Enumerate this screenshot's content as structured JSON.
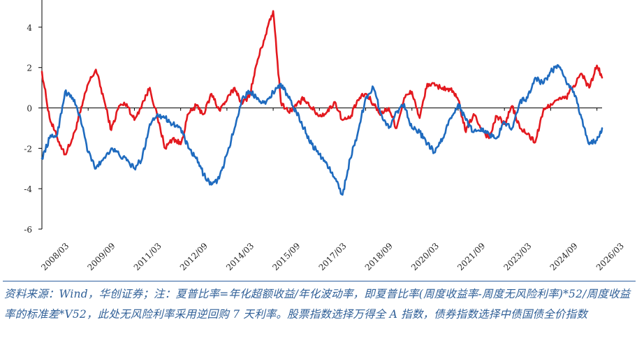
{
  "chart_data": {
    "type": "line",
    "title": "",
    "xlabel": "",
    "ylabel": "",
    "ylim": [
      -6,
      5
    ],
    "yticks": [
      4,
      2,
      0,
      -2,
      -4,
      -6
    ],
    "xticks": [
      "2008/03",
      "2009/09",
      "2011/03",
      "2012/09",
      "2014/03",
      "2015/09",
      "2017/03",
      "2018/09",
      "2020/03",
      "2021/09",
      "2023/03",
      "2024/09",
      "2026/03"
    ],
    "grid": false,
    "legend": "none",
    "series": [
      {
        "color": "#e3191f",
        "x": [
          "2008/03",
          "2008/06",
          "2008/09",
          "2008/12",
          "2009/03",
          "2009/06",
          "2009/09",
          "2009/12",
          "2010/03",
          "2010/06",
          "2010/09",
          "2010/12",
          "2011/03",
          "2011/06",
          "2011/09",
          "2011/12",
          "2012/03",
          "2012/06",
          "2012/09",
          "2012/12",
          "2013/03",
          "2013/06",
          "2013/09",
          "2013/12",
          "2014/03",
          "2014/06",
          "2014/09",
          "2014/12",
          "2015/03",
          "2015/06",
          "2015/09",
          "2015/12",
          "2016/03",
          "2016/06",
          "2016/09",
          "2016/12",
          "2017/03",
          "2017/06",
          "2017/09",
          "2017/12",
          "2018/03",
          "2018/06",
          "2018/09",
          "2018/12",
          "2019/03",
          "2019/06",
          "2019/09",
          "2019/12",
          "2020/03",
          "2020/06",
          "2020/09",
          "2020/12",
          "2021/03",
          "2021/06",
          "2021/09",
          "2021/12",
          "2022/03",
          "2022/06",
          "2022/09",
          "2022/12",
          "2023/03",
          "2023/06",
          "2023/09",
          "2023/12",
          "2024/03",
          "2024/06",
          "2024/09",
          "2024/12",
          "2025/03",
          "2025/06",
          "2025/09",
          "2025/12",
          "2026/03",
          "2026/05"
        ],
        "y": [
          1.8,
          -0.5,
          -1.5,
          -2.3,
          -1.5,
          -0.2,
          1.2,
          1.9,
          0.5,
          -1.1,
          0.1,
          0.2,
          -0.6,
          0.2,
          1.0,
          -0.5,
          -2.0,
          -1.5,
          -1.8,
          -0.3,
          0.1,
          -0.3,
          0.7,
          -0.1,
          0.4,
          1.0,
          0.2,
          0.7,
          2.4,
          3.6,
          4.8,
          0.3,
          -0.2,
          0.1,
          0.5,
          0.0,
          -0.4,
          -0.2,
          0.3,
          -0.6,
          -0.5,
          0.4,
          0.7,
          0.2,
          -0.3,
          0.0,
          -1.0,
          0.5,
          0.8,
          -0.5,
          1.2,
          1.1,
          1.0,
          0.9,
          0.4,
          -1.2,
          -0.3,
          -1.0,
          -1.5,
          -0.4,
          -0.8,
          0.1,
          -1.0,
          -1.3,
          -1.7,
          -0.2,
          0.2,
          0.4,
          0.5,
          1.1,
          1.7,
          1.0,
          2.1,
          1.5
        ]
      },
      {
        "color": "#1f6bbf",
        "x": [
          "2008/03",
          "2008/06",
          "2008/09",
          "2008/12",
          "2009/03",
          "2009/06",
          "2009/09",
          "2009/12",
          "2010/03",
          "2010/06",
          "2010/09",
          "2010/12",
          "2011/03",
          "2011/06",
          "2011/09",
          "2011/12",
          "2012/03",
          "2012/06",
          "2012/09",
          "2012/12",
          "2013/03",
          "2013/06",
          "2013/09",
          "2013/12",
          "2014/03",
          "2014/06",
          "2014/09",
          "2014/12",
          "2015/03",
          "2015/06",
          "2015/09",
          "2015/12",
          "2016/03",
          "2016/06",
          "2016/09",
          "2016/12",
          "2017/03",
          "2017/06",
          "2017/09",
          "2017/12",
          "2018/03",
          "2018/06",
          "2018/09",
          "2018/12",
          "2019/03",
          "2019/06",
          "2019/09",
          "2019/12",
          "2020/03",
          "2020/06",
          "2020/09",
          "2020/12",
          "2021/03",
          "2021/06",
          "2021/09",
          "2021/12",
          "2022/03",
          "2022/06",
          "2022/09",
          "2022/12",
          "2023/03",
          "2023/06",
          "2023/09",
          "2023/12",
          "2024/03",
          "2024/06",
          "2024/09",
          "2024/12",
          "2025/03",
          "2025/06",
          "2025/09",
          "2025/12",
          "2026/03",
          "2026/05"
        ],
        "y": [
          -2.5,
          -1.5,
          -1.3,
          0.8,
          0.5,
          -0.5,
          -2.2,
          -3.0,
          -2.5,
          -2.0,
          -2.3,
          -2.6,
          -3.0,
          -2.5,
          -0.8,
          -0.3,
          -0.5,
          -0.8,
          -1.0,
          -2.0,
          -2.5,
          -3.3,
          -3.8,
          -3.5,
          -2.3,
          -1.0,
          0.5,
          0.8,
          0.5,
          0.2,
          0.8,
          1.2,
          0.5,
          -0.2,
          -1.0,
          -1.8,
          -2.3,
          -2.8,
          -3.5,
          -4.3,
          -2.5,
          -1.2,
          0.5,
          1.0,
          -0.3,
          -1.0,
          -0.2,
          0.2,
          -1.0,
          -1.2,
          -1.8,
          -2.2,
          -1.5,
          -0.5,
          0.2,
          -0.6,
          -1.2,
          -1.0,
          -1.3,
          -1.5,
          -0.7,
          -1.0,
          0.3,
          0.5,
          1.5,
          1.2,
          1.8,
          2.1,
          1.3,
          0.8,
          -0.5,
          -1.8,
          -1.6,
          -1.0
        ]
      }
    ]
  },
  "source_note": "资料来源：Wind，华创证券；注：夏普比率=年化超额收益/年化波动率，即夏普比率(周度收益率-周度无风险利率)*52/周度收益率的标准差*V52，此处无风险利率采用逆回购 7 天利率。股票指数选择万得全 A 指数，债券指数选择中债国债全价指数"
}
